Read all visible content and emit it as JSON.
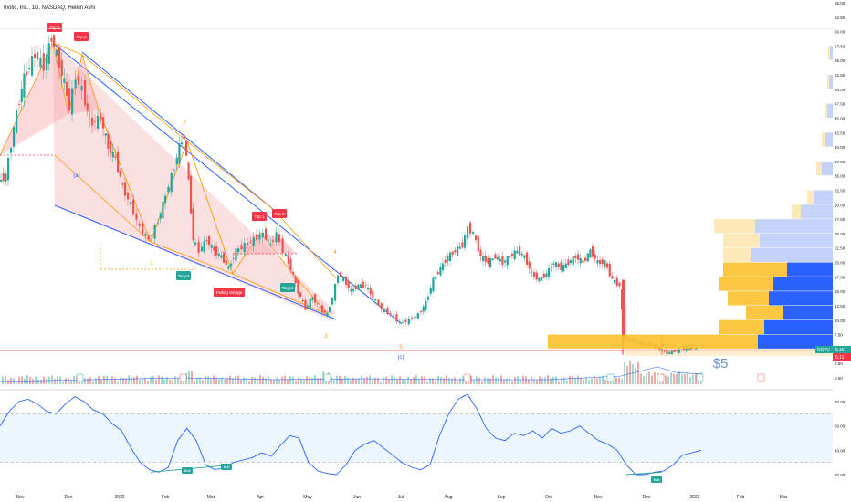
{
  "header": {
    "title": "Inotic, Inc., 1D, NASDAQ, Heikin Ashi"
  },
  "chart_data": [
    {
      "type": "candlestick",
      "symbol": "NOTV",
      "chart_style": "Heikin Ashi",
      "interval": "1D",
      "exchange": "NASDAQ",
      "ylim": [
        0,
        65
      ],
      "y_ticks": [
        "65.00",
        "62.50",
        "60.00",
        "57.50",
        "55.00",
        "52.50",
        "50.00",
        "47.50",
        "45.00",
        "42.50",
        "40.00",
        "37.50",
        "35.00",
        "32.50",
        "30.00",
        "27.50",
        "25.00",
        "22.50",
        "20.00",
        "17.50",
        "15.00",
        "12.50",
        "10.00",
        "7.50",
        "5.00",
        "2.50",
        "0.00"
      ],
      "x_ticks": [
        "Nov",
        "Dec",
        "2022",
        "Feb",
        "Mar",
        "Apr",
        "May",
        "Jun",
        "Jul",
        "Aug",
        "Sep",
        "Oct",
        "Nov",
        "Dec",
        "2023",
        "Feb",
        "Mar"
      ],
      "price_series": [
        {
          "date": "2021-10-25",
          "close": 34
        },
        {
          "date": "2021-11-01",
          "close": 46
        },
        {
          "date": "2021-11-08",
          "close": 55
        },
        {
          "date": "2021-11-15",
          "close": 52
        },
        {
          "date": "2021-11-22",
          "close": 59
        },
        {
          "date": "2021-11-29",
          "close": 54
        },
        {
          "date": "2021-12-06",
          "close": 48
        },
        {
          "date": "2021-12-13",
          "close": 44
        },
        {
          "date": "2021-12-20",
          "close": 42
        },
        {
          "date": "2022-01-03",
          "close": 36
        },
        {
          "date": "2022-01-10",
          "close": 31
        },
        {
          "date": "2022-01-17",
          "close": 27
        },
        {
          "date": "2022-01-24",
          "close": 29
        },
        {
          "date": "2022-01-31",
          "close": 37
        },
        {
          "date": "2022-02-07",
          "close": 41
        },
        {
          "date": "2022-02-14",
          "close": 22
        },
        {
          "date": "2022-02-21",
          "close": 24
        },
        {
          "date": "2022-02-28",
          "close": 20
        },
        {
          "date": "2022-03-07",
          "close": 23
        },
        {
          "date": "2022-03-14",
          "close": 19
        },
        {
          "date": "2022-03-21",
          "close": 22
        },
        {
          "date": "2022-03-28",
          "close": 24
        },
        {
          "date": "2022-04-04",
          "close": 26
        },
        {
          "date": "2022-04-11",
          "close": 24
        },
        {
          "date": "2022-04-18",
          "close": 21
        },
        {
          "date": "2022-04-25",
          "close": 17
        },
        {
          "date": "2022-05-02",
          "close": 14
        },
        {
          "date": "2022-05-09",
          "close": 12
        },
        {
          "date": "2022-05-16",
          "close": 18
        },
        {
          "date": "2022-05-23",
          "close": 16
        },
        {
          "date": "2022-05-30",
          "close": 16
        },
        {
          "date": "2022-06-06",
          "close": 14
        },
        {
          "date": "2022-06-13",
          "close": 12
        },
        {
          "date": "2022-06-20",
          "close": 10
        },
        {
          "date": "2022-06-27",
          "close": 11
        },
        {
          "date": "2022-07-04",
          "close": 12
        },
        {
          "date": "2022-07-11",
          "close": 16
        },
        {
          "date": "2022-07-18",
          "close": 19
        },
        {
          "date": "2022-07-25",
          "close": 23
        },
        {
          "date": "2022-08-01",
          "close": 26
        },
        {
          "date": "2022-08-08",
          "close": 22
        },
        {
          "date": "2022-08-15",
          "close": 20
        },
        {
          "date": "2022-08-22",
          "close": 21
        },
        {
          "date": "2022-08-29",
          "close": 22
        },
        {
          "date": "2022-09-05",
          "close": 19
        },
        {
          "date": "2022-09-12",
          "close": 17
        },
        {
          "date": "2022-09-19",
          "close": 20
        },
        {
          "date": "2022-09-26",
          "close": 19
        },
        {
          "date": "2022-10-03",
          "close": 20
        },
        {
          "date": "2022-10-10",
          "close": 22
        },
        {
          "date": "2022-10-17",
          "close": 20
        },
        {
          "date": "2022-10-24",
          "close": 20
        },
        {
          "date": "2022-10-31",
          "close": 17
        },
        {
          "date": "2022-11-07",
          "close": 17
        },
        {
          "date": "2022-11-14",
          "close": 8
        },
        {
          "date": "2022-11-21",
          "close": 6.5
        },
        {
          "date": "2022-11-28",
          "close": 6
        },
        {
          "date": "2022-12-05",
          "close": 5.5
        },
        {
          "date": "2022-12-12",
          "close": 4.5
        },
        {
          "date": "2022-12-19",
          "close": 4.8
        },
        {
          "date": "2022-12-26",
          "close": 5
        },
        {
          "date": "2023-01-02",
          "close": 5.2
        }
      ],
      "last_price": {
        "label": "NOTV",
        "value": "5.15",
        "level": "5.11"
      },
      "horizontal_line": 5,
      "annotations": [
        "Top 1",
        "Top 2",
        "Top 1",
        "Top 2",
        "(a)",
        "2",
        "1",
        "Target",
        "Target",
        "Falling Wedge",
        "4",
        "3",
        "5",
        "3",
        "(c)",
        "$5"
      ],
      "volume_profile_levels": [
        5,
        7.5,
        10,
        12.5,
        15,
        17.5,
        20,
        22.5,
        25
      ]
    },
    {
      "type": "line",
      "name": "RSI",
      "ylim": [
        15,
        90
      ],
      "y_ticks": [
        "80.00",
        "60.00",
        "40.00",
        "20.00"
      ],
      "band": [
        30,
        70
      ],
      "series": [
        {
          "values": [
            60,
            72,
            80,
            82,
            78,
            72,
            70,
            78,
            84,
            80,
            73,
            70,
            62,
            56,
            42,
            30,
            24,
            22,
            26,
            48,
            58,
            48,
            28,
            24,
            26,
            30,
            32,
            34,
            38,
            35,
            44,
            52,
            50,
            30,
            23,
            21,
            20,
            28,
            40,
            45,
            48,
            42,
            36,
            30,
            26,
            24,
            28,
            52,
            70,
            82,
            86,
            74,
            58,
            50,
            48,
            54,
            52,
            56,
            50,
            58,
            54,
            56,
            60,
            54,
            48,
            45,
            40,
            28,
            20,
            20,
            22,
            23,
            28,
            36,
            38,
            40
          ]
        }
      ],
      "annotations": [
        "Bull",
        "Bull",
        "Bull"
      ]
    }
  ]
}
